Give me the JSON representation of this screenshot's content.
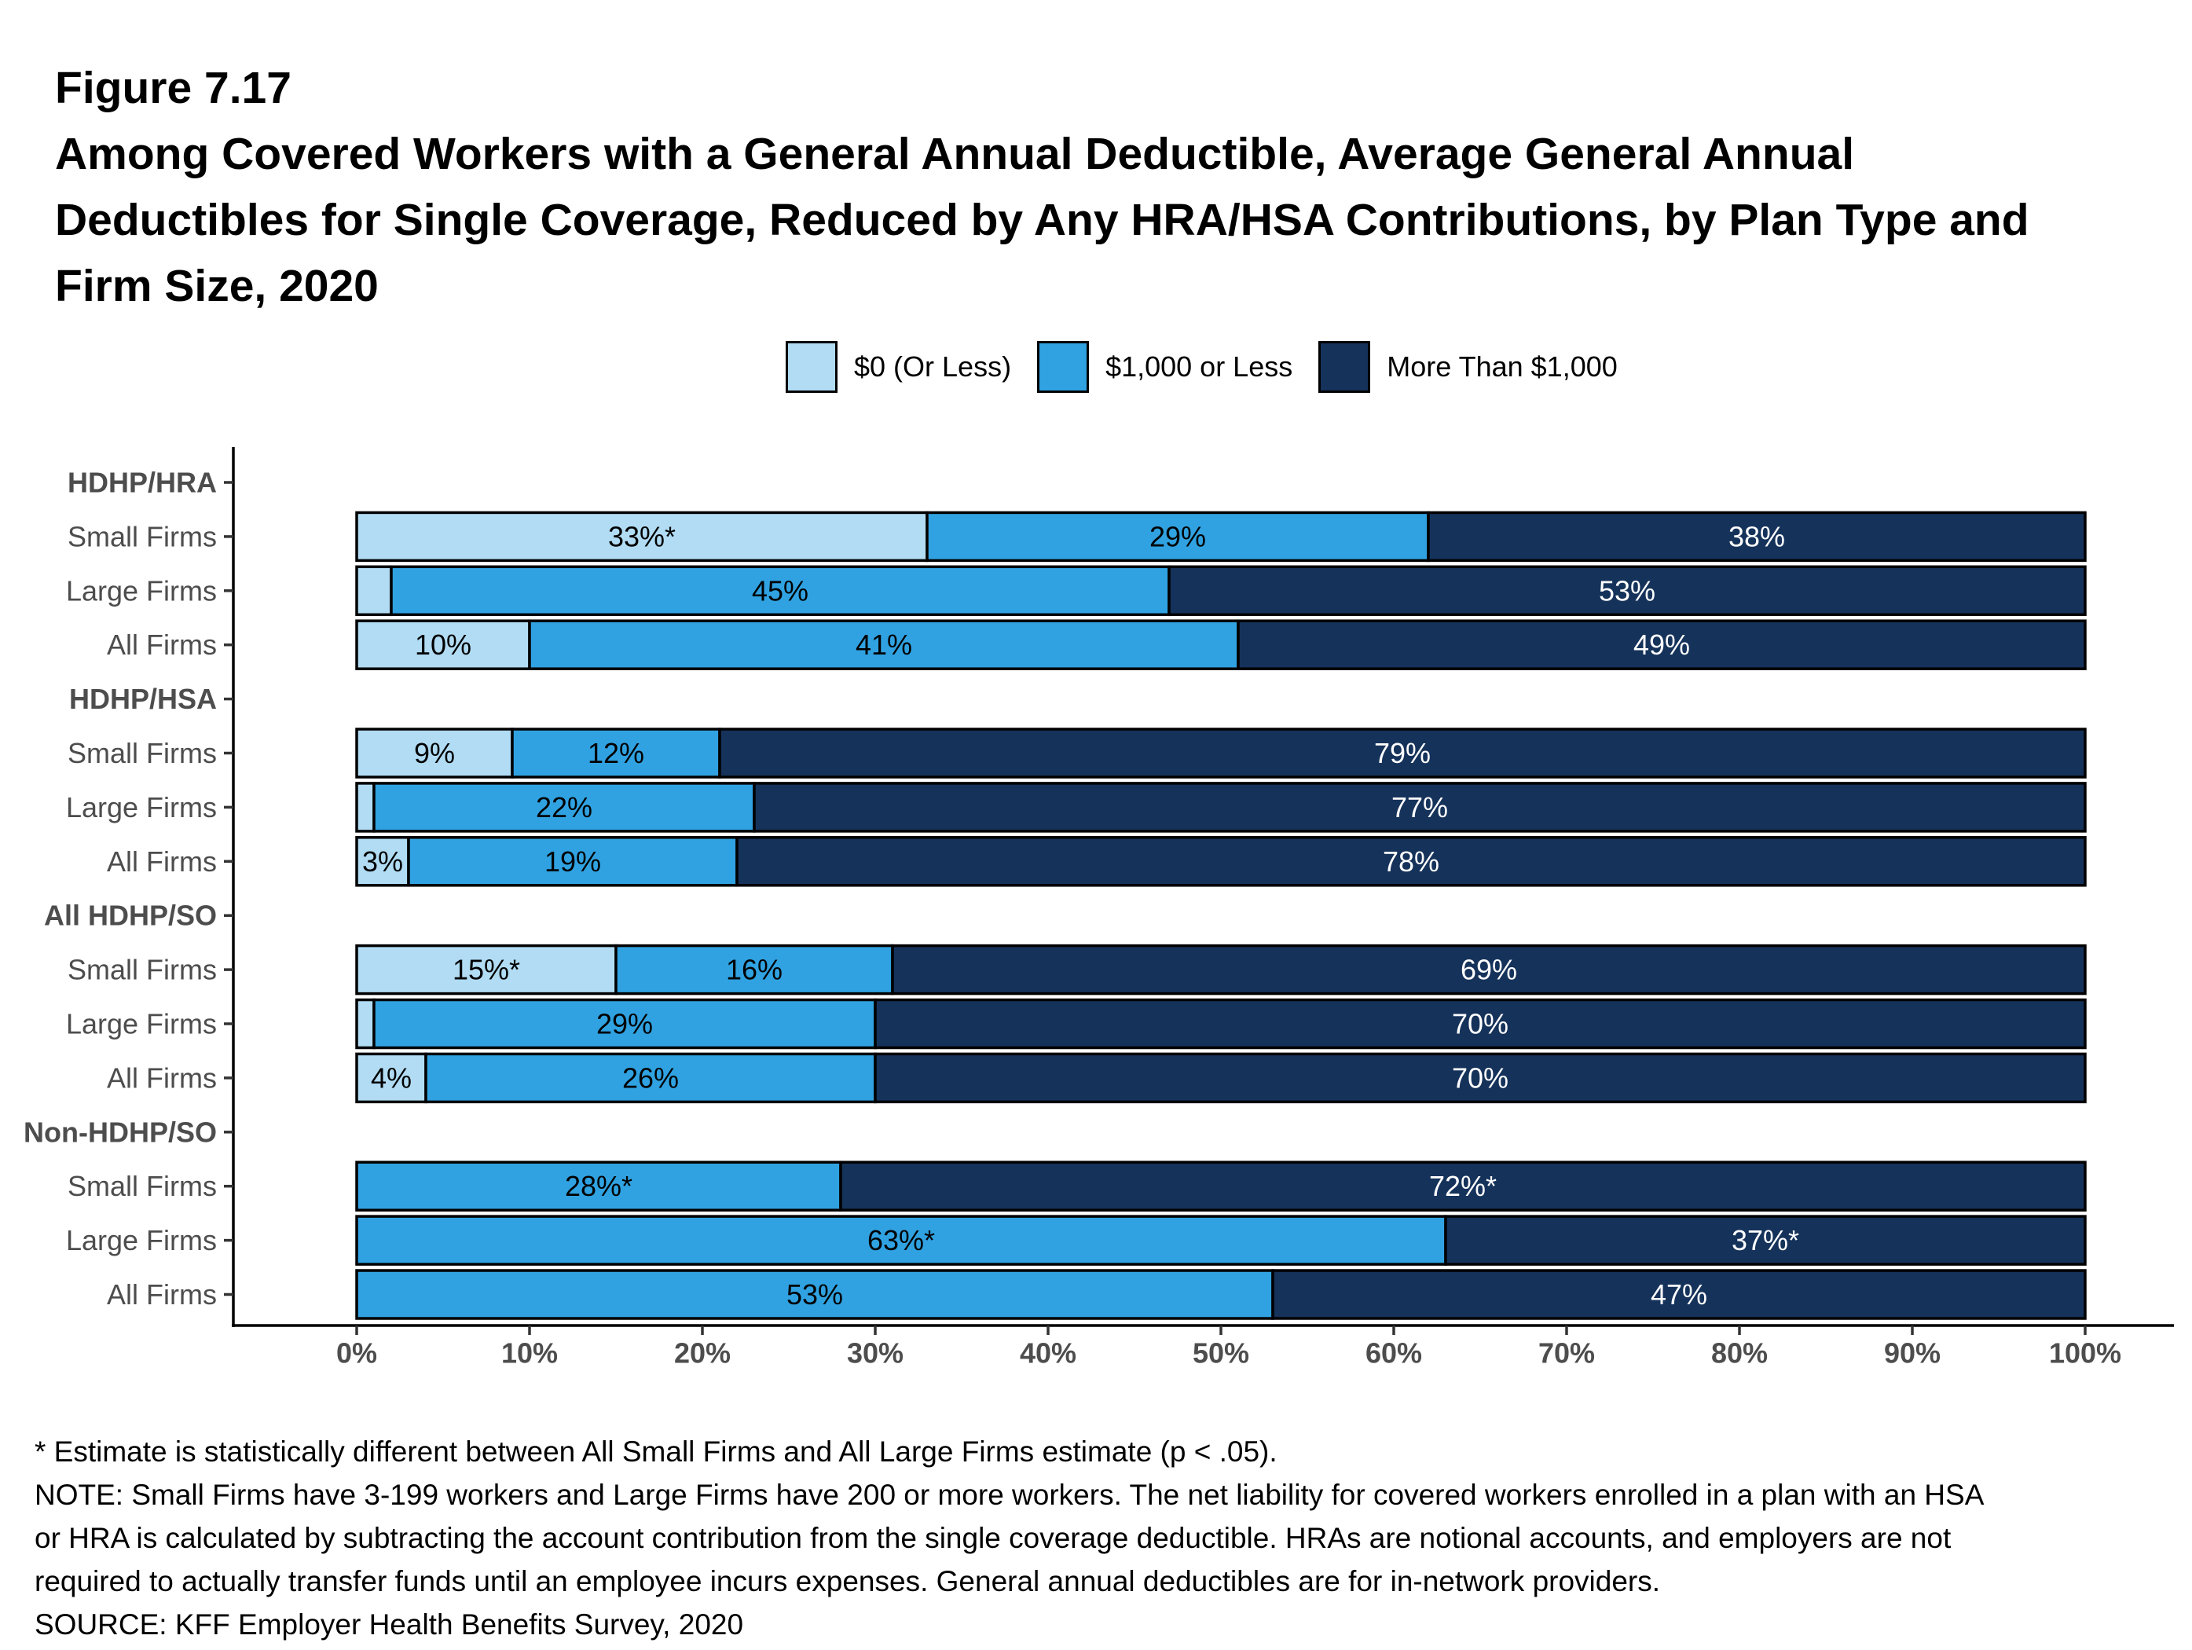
{
  "chart_data": {
    "type": "bar",
    "orientation": "horizontal",
    "stacked": true,
    "figure_label": "Figure 7.17",
    "title_lines": [
      "Among Covered Workers with a General Annual Deductible, Average General Annual",
      "Deductibles for Single Coverage, Reduced by Any HRA/HSA Contributions, by Plan Type and",
      "Firm Size, 2020"
    ],
    "legend_placement": "top",
    "grid": false,
    "xlim": [
      0,
      100
    ],
    "x_ticks": [
      0,
      10,
      20,
      30,
      40,
      50,
      60,
      70,
      80,
      90,
      100
    ],
    "x_tick_labels": [
      "0%",
      "10%",
      "20%",
      "30%",
      "40%",
      "50%",
      "60%",
      "70%",
      "80%",
      "90%",
      "100%"
    ],
    "series": [
      {
        "name": "$0 (Or Less)",
        "color": "#b1dcf4",
        "label_color": "#000000"
      },
      {
        "name": "$1,000 or Less",
        "color": "#30a2e1",
        "label_color": "#000000"
      },
      {
        "name": "More Than $1,000",
        "color": "#15325a",
        "label_color": "#ffffff"
      }
    ],
    "groups": [
      {
        "name": "HDHP/HRA",
        "rows": [
          {
            "category": "Small Firms",
            "values": [
              33,
              29,
              38
            ],
            "data_labels": [
              "33%*",
              "29%",
              "38%"
            ]
          },
          {
            "category": "Large Firms",
            "values": [
              2,
              45,
              53
            ],
            "data_labels": [
              "",
              "45%",
              "53%"
            ]
          },
          {
            "category": "All Firms",
            "values": [
              10,
              41,
              49
            ],
            "data_labels": [
              "10%",
              "41%",
              "49%"
            ]
          }
        ]
      },
      {
        "name": "HDHP/HSA",
        "rows": [
          {
            "category": "Small Firms",
            "values": [
              9,
              12,
              79
            ],
            "data_labels": [
              "9%",
              "12%",
              "79%"
            ]
          },
          {
            "category": "Large Firms",
            "values": [
              1,
              22,
              77
            ],
            "data_labels": [
              "",
              "22%",
              "77%"
            ]
          },
          {
            "category": "All Firms",
            "values": [
              3,
              19,
              78
            ],
            "data_labels": [
              "3%",
              "19%",
              "78%"
            ]
          }
        ]
      },
      {
        "name": "All HDHP/SO",
        "rows": [
          {
            "category": "Small Firms",
            "values": [
              15,
              16,
              69
            ],
            "data_labels": [
              "15%*",
              "16%",
              "69%"
            ]
          },
          {
            "category": "Large Firms",
            "values": [
              1,
              29,
              70
            ],
            "data_labels": [
              "",
              "29%",
              "70%"
            ]
          },
          {
            "category": "All Firms",
            "values": [
              4,
              26,
              70
            ],
            "data_labels": [
              "4%",
              "26%",
              "70%"
            ]
          }
        ]
      },
      {
        "name": "Non-HDHP/SO",
        "rows": [
          {
            "category": "Small Firms",
            "values": [
              0,
              28,
              72
            ],
            "data_labels": [
              "",
              "28%*",
              "72%*"
            ]
          },
          {
            "category": "Large Firms",
            "values": [
              0,
              63,
              37
            ],
            "data_labels": [
              "",
              "63%*",
              "37%*"
            ]
          },
          {
            "category": "All Firms",
            "values": [
              0,
              53,
              47
            ],
            "data_labels": [
              "",
              "53%",
              "47%"
            ]
          }
        ]
      }
    ]
  },
  "notes": [
    "* Estimate is statistically different between All Small Firms and All Large Firms estimate (p < .05).",
    "NOTE: Small Firms have 3-199 workers and Large Firms have 200 or more workers. The net liability for covered workers enrolled in a plan with an HSA",
    "or HRA is calculated by subtracting the account contribution from the single coverage deductible. HRAs are notional accounts, and employers are not",
    "required to actually transfer funds until an employee incurs expenses. General annual deductibles are for in-network providers.",
    "SOURCE: KFF Employer Health Benefits Survey, 2020"
  ]
}
